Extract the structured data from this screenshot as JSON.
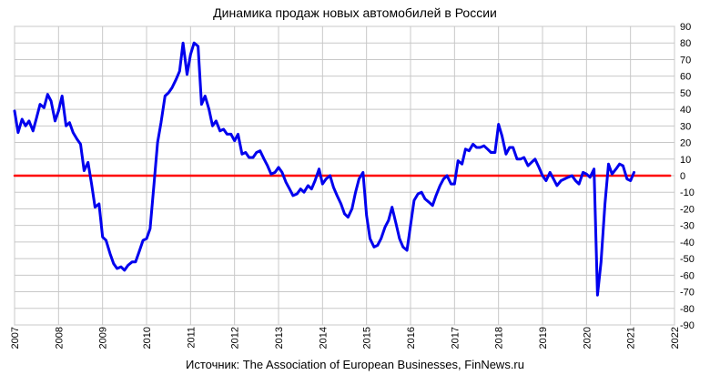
{
  "chart_data": {
    "type": "line",
    "title": "Динамика продаж новых автомобилей в России",
    "source": "Источник: The Association of European Businesses, FinNews.ru",
    "xlabel": "",
    "ylabel": "",
    "xlim": [
      2007,
      2022
    ],
    "ylim": [
      -90,
      90
    ],
    "x_ticks": [
      "2007",
      "2008",
      "2009",
      "2010",
      "2011",
      "2012",
      "2013",
      "2014",
      "2015",
      "2016",
      "2017",
      "2018",
      "2019",
      "2020",
      "2021",
      "2022"
    ],
    "y_ticks": [
      90,
      80,
      70,
      60,
      50,
      40,
      30,
      20,
      10,
      0,
      -10,
      -20,
      -30,
      -40,
      -50,
      -60,
      -70,
      -80,
      -90
    ],
    "grid": true,
    "y_axis_side": "right",
    "series": [
      {
        "color": "#0000ee",
        "points": [
          [
            2007.0,
            39
          ],
          [
            2007.08,
            26
          ],
          [
            2007.17,
            34
          ],
          [
            2007.25,
            30
          ],
          [
            2007.33,
            33
          ],
          [
            2007.42,
            27
          ],
          [
            2007.5,
            35
          ],
          [
            2007.58,
            43
          ],
          [
            2007.67,
            41
          ],
          [
            2007.75,
            49
          ],
          [
            2007.83,
            45
          ],
          [
            2007.92,
            33
          ],
          [
            2008.0,
            39
          ],
          [
            2008.08,
            48
          ],
          [
            2008.17,
            30
          ],
          [
            2008.25,
            32
          ],
          [
            2008.33,
            26
          ],
          [
            2008.42,
            22
          ],
          [
            2008.5,
            19
          ],
          [
            2008.58,
            3
          ],
          [
            2008.67,
            8
          ],
          [
            2008.75,
            -5
          ],
          [
            2008.83,
            -19
          ],
          [
            2008.92,
            -17
          ],
          [
            2009.0,
            -37
          ],
          [
            2009.08,
            -39
          ],
          [
            2009.17,
            -47
          ],
          [
            2009.25,
            -53
          ],
          [
            2009.33,
            -56
          ],
          [
            2009.42,
            -55
          ],
          [
            2009.5,
            -57
          ],
          [
            2009.58,
            -54
          ],
          [
            2009.67,
            -52
          ],
          [
            2009.75,
            -52
          ],
          [
            2009.83,
            -46
          ],
          [
            2009.92,
            -39
          ],
          [
            2010.0,
            -38
          ],
          [
            2010.08,
            -32
          ],
          [
            2010.17,
            -5
          ],
          [
            2010.25,
            20
          ],
          [
            2010.33,
            32
          ],
          [
            2010.42,
            48
          ],
          [
            2010.5,
            50
          ],
          [
            2010.58,
            53
          ],
          [
            2010.67,
            58
          ],
          [
            2010.75,
            63
          ],
          [
            2010.83,
            80
          ],
          [
            2010.92,
            61
          ],
          [
            2011.0,
            73
          ],
          [
            2011.08,
            80
          ],
          [
            2011.17,
            78
          ],
          [
            2011.25,
            43
          ],
          [
            2011.33,
            48
          ],
          [
            2011.42,
            40
          ],
          [
            2011.5,
            30
          ],
          [
            2011.58,
            33
          ],
          [
            2011.67,
            27
          ],
          [
            2011.75,
            28
          ],
          [
            2011.83,
            25
          ],
          [
            2011.92,
            25
          ],
          [
            2012.0,
            21
          ],
          [
            2012.08,
            25
          ],
          [
            2012.17,
            13
          ],
          [
            2012.25,
            14
          ],
          [
            2012.33,
            11
          ],
          [
            2012.42,
            11
          ],
          [
            2012.5,
            14
          ],
          [
            2012.58,
            15
          ],
          [
            2012.67,
            10
          ],
          [
            2012.75,
            6
          ],
          [
            2012.83,
            1
          ],
          [
            2012.92,
            2
          ],
          [
            2013.0,
            5
          ],
          [
            2013.08,
            2
          ],
          [
            2013.17,
            -4
          ],
          [
            2013.25,
            -8
          ],
          [
            2013.33,
            -12
          ],
          [
            2013.42,
            -11
          ],
          [
            2013.5,
            -8
          ],
          [
            2013.58,
            -10
          ],
          [
            2013.67,
            -6
          ],
          [
            2013.75,
            -8
          ],
          [
            2013.83,
            -3
          ],
          [
            2013.92,
            4
          ],
          [
            2014.0,
            -5
          ],
          [
            2014.08,
            -2
          ],
          [
            2014.17,
            0
          ],
          [
            2014.25,
            -7
          ],
          [
            2014.33,
            -12
          ],
          [
            2014.42,
            -17
          ],
          [
            2014.5,
            -23
          ],
          [
            2014.58,
            -25
          ],
          [
            2014.67,
            -20
          ],
          [
            2014.75,
            -10
          ],
          [
            2014.83,
            -2
          ],
          [
            2014.92,
            2
          ],
          [
            2015.0,
            -24
          ],
          [
            2015.08,
            -38
          ],
          [
            2015.17,
            -43
          ],
          [
            2015.25,
            -42
          ],
          [
            2015.33,
            -38
          ],
          [
            2015.42,
            -31
          ],
          [
            2015.5,
            -27
          ],
          [
            2015.58,
            -19
          ],
          [
            2015.67,
            -29
          ],
          [
            2015.75,
            -38
          ],
          [
            2015.83,
            -43
          ],
          [
            2015.92,
            -45
          ],
          [
            2016.0,
            -30
          ],
          [
            2016.08,
            -15
          ],
          [
            2016.17,
            -11
          ],
          [
            2016.25,
            -10
          ],
          [
            2016.33,
            -14
          ],
          [
            2016.42,
            -16
          ],
          [
            2016.5,
            -18
          ],
          [
            2016.58,
            -12
          ],
          [
            2016.67,
            -6
          ],
          [
            2016.75,
            -2
          ],
          [
            2016.83,
            0
          ],
          [
            2016.92,
            -5
          ],
          [
            2017.0,
            -5
          ],
          [
            2017.08,
            9
          ],
          [
            2017.17,
            7
          ],
          [
            2017.25,
            16
          ],
          [
            2017.33,
            15
          ],
          [
            2017.42,
            19
          ],
          [
            2017.5,
            17
          ],
          [
            2017.58,
            17
          ],
          [
            2017.67,
            18
          ],
          [
            2017.75,
            16
          ],
          [
            2017.83,
            14
          ],
          [
            2017.92,
            14
          ],
          [
            2018.0,
            31
          ],
          [
            2018.08,
            24
          ],
          [
            2018.17,
            13
          ],
          [
            2018.25,
            17
          ],
          [
            2018.33,
            17
          ],
          [
            2018.42,
            10
          ],
          [
            2018.5,
            10
          ],
          [
            2018.58,
            11
          ],
          [
            2018.67,
            6
          ],
          [
            2018.75,
            8
          ],
          [
            2018.83,
            10
          ],
          [
            2018.92,
            5
          ],
          [
            2019.0,
            0
          ],
          [
            2019.08,
            -3
          ],
          [
            2019.17,
            2
          ],
          [
            2019.25,
            -2
          ],
          [
            2019.33,
            -6
          ],
          [
            2019.42,
            -3
          ],
          [
            2019.5,
            -2
          ],
          [
            2019.58,
            -1
          ],
          [
            2019.67,
            0
          ],
          [
            2019.75,
            -3
          ],
          [
            2019.83,
            -5
          ],
          [
            2019.92,
            2
          ],
          [
            2020.0,
            1
          ],
          [
            2020.08,
            -1
          ],
          [
            2020.17,
            4
          ],
          [
            2020.25,
            -72
          ],
          [
            2020.33,
            -52
          ],
          [
            2020.42,
            -17
          ],
          [
            2020.5,
            7
          ],
          [
            2020.58,
            1
          ],
          [
            2020.67,
            4
          ],
          [
            2020.75,
            7
          ],
          [
            2020.83,
            6
          ],
          [
            2020.92,
            -2
          ],
          [
            2021.0,
            -3
          ],
          [
            2021.08,
            2
          ]
        ]
      },
      {
        "color": "#ff0000",
        "points": [
          [
            2007.0,
            0
          ],
          [
            2021.9,
            0
          ]
        ]
      }
    ]
  }
}
